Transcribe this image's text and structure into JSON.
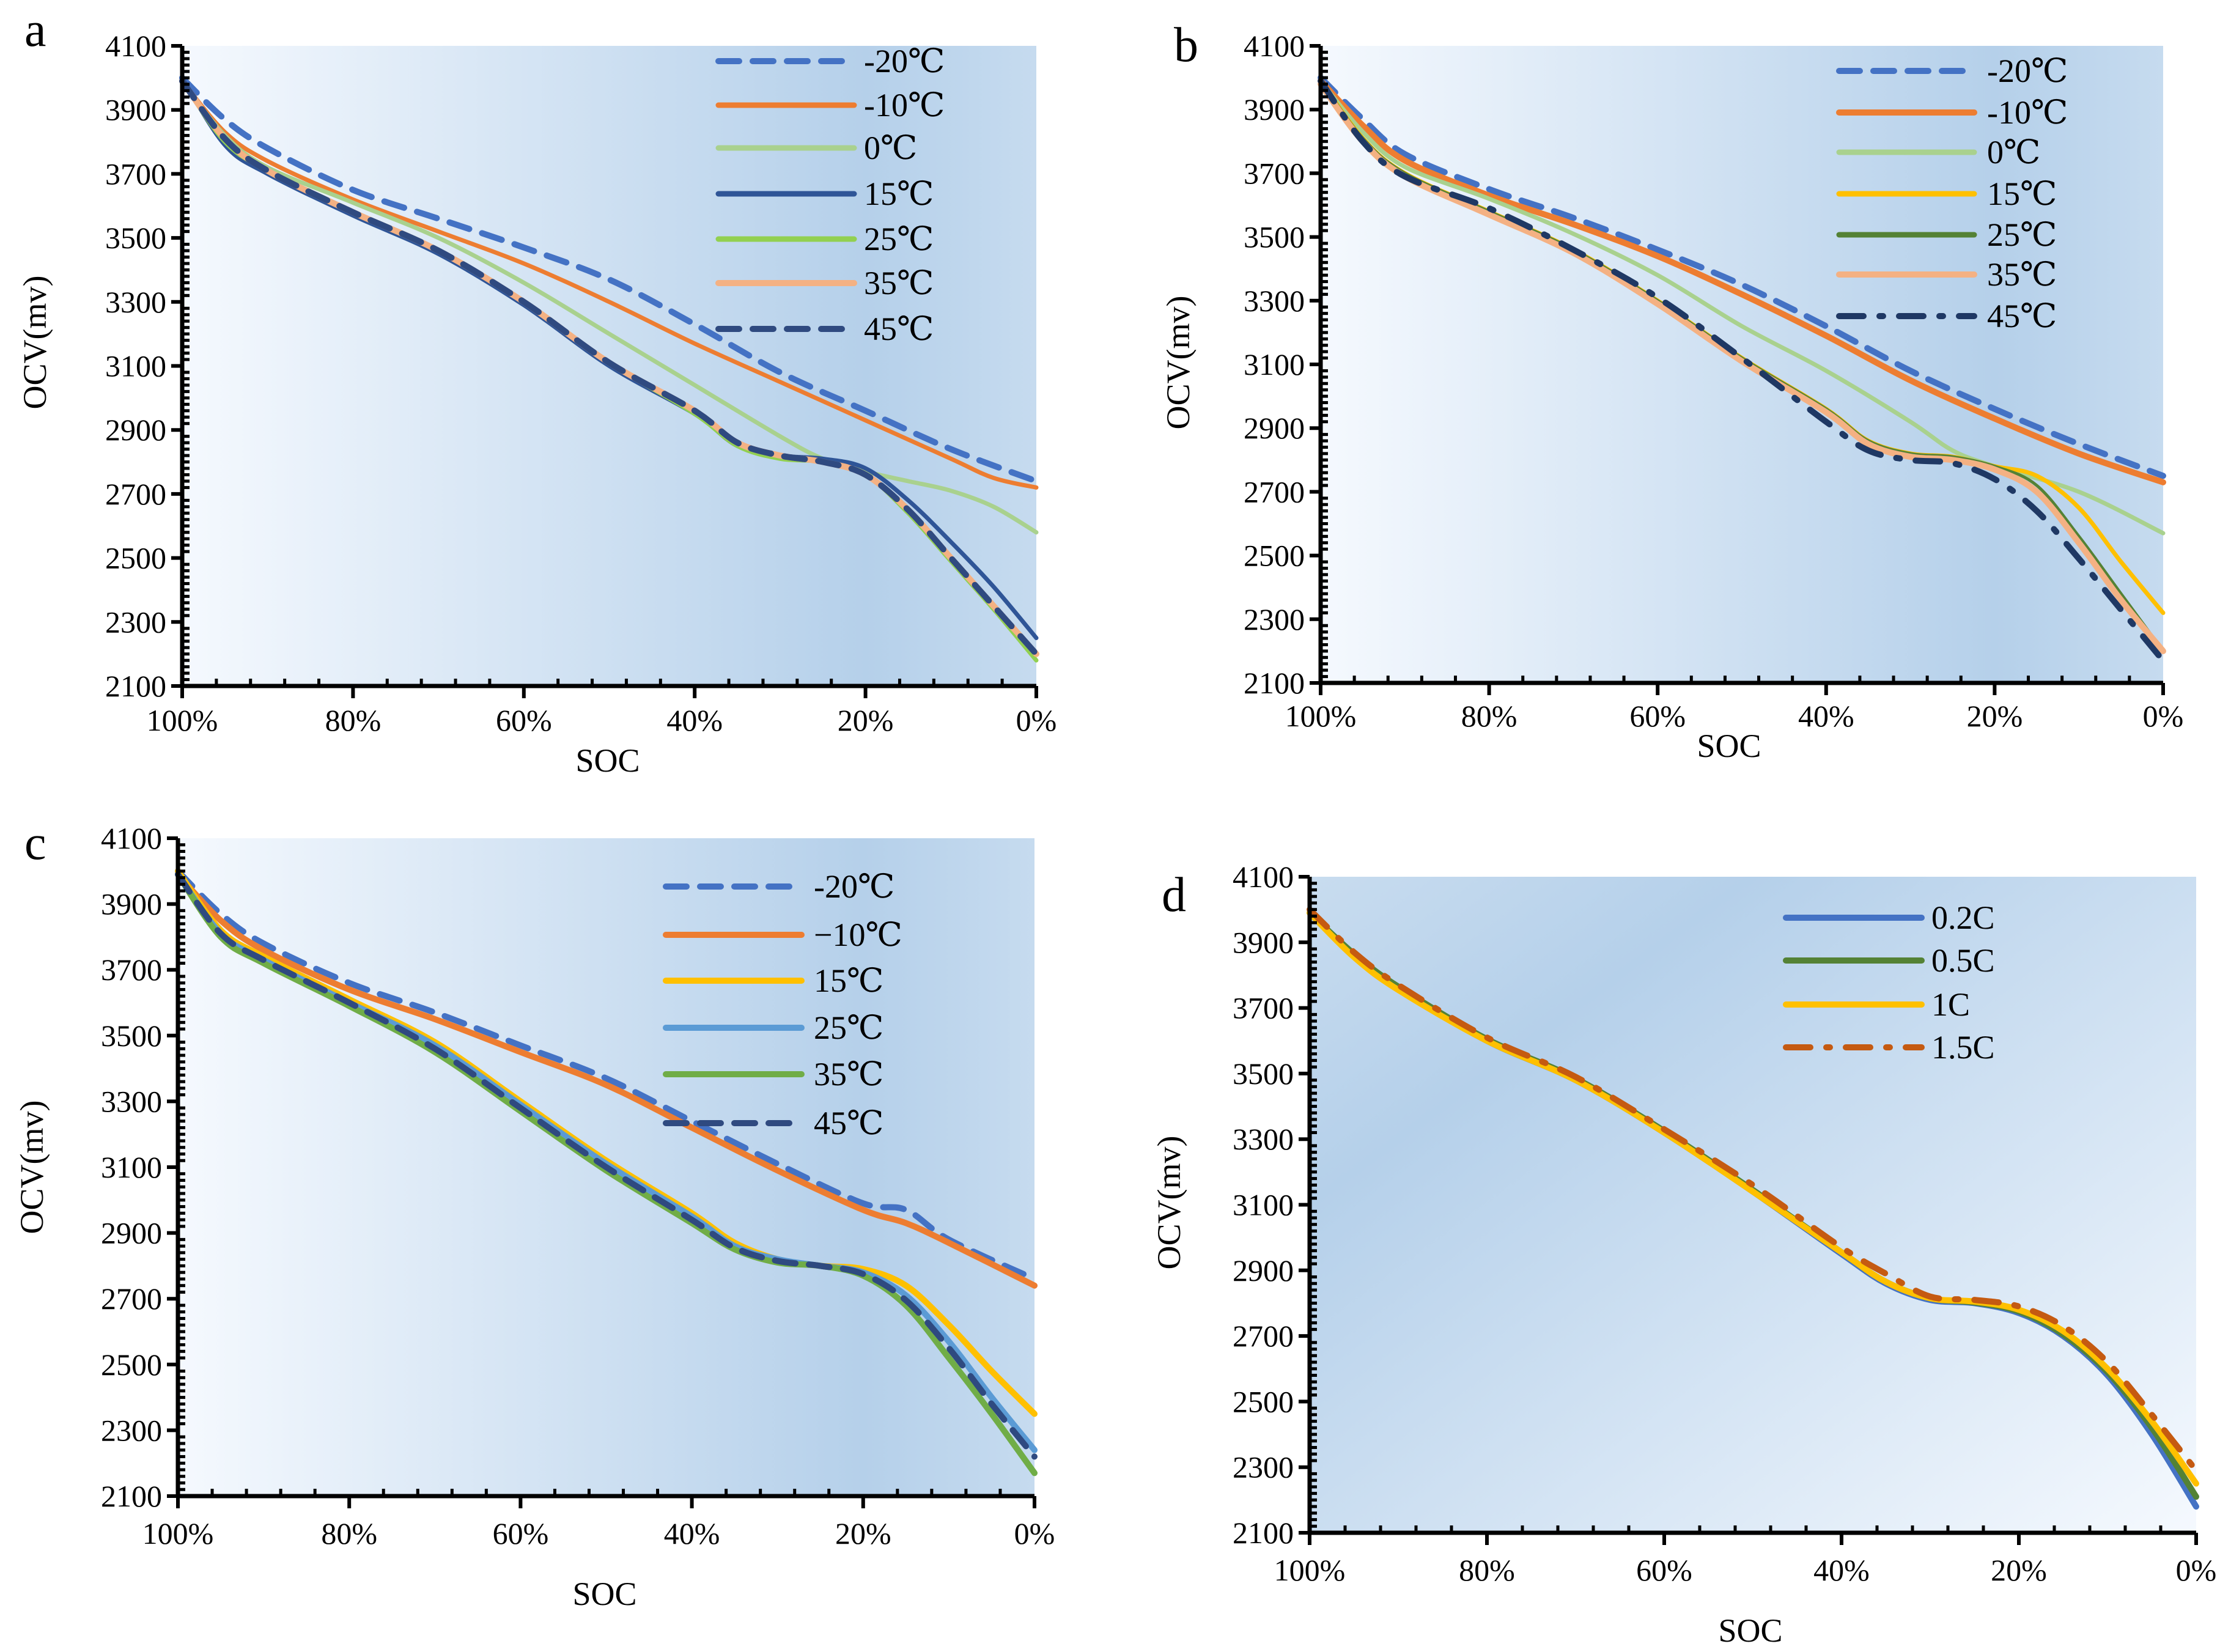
{
  "chart_data": [
    {
      "panel": "a",
      "type": "line",
      "xlabel": "SOC",
      "ylabel": "OCV(mv)",
      "ylim": [
        2100,
        4100
      ],
      "yticks": [
        "2100",
        "2300",
        "2500",
        "2700",
        "2900",
        "3100",
        "3300",
        "3500",
        "3700",
        "3900",
        "4100"
      ],
      "xticks": [
        "100%",
        "80%",
        "60%",
        "40%",
        "20%",
        "0%"
      ],
      "legend": "top-right",
      "series": [
        {
          "name": "-20℃",
          "color": "#4472C4",
          "style": "dash",
          "x": [
            100,
            95,
            90,
            80,
            70,
            60,
            50,
            40,
            30,
            20,
            10,
            0
          ],
          "y": [
            4000,
            3870,
            3780,
            3650,
            3560,
            3470,
            3370,
            3230,
            3080,
            2960,
            2840,
            2740
          ]
        },
        {
          "name": "-10℃",
          "color": "#ED7D31",
          "style": "solid",
          "x": [
            100,
            95,
            90,
            80,
            70,
            60,
            50,
            40,
            30,
            20,
            10,
            5,
            0
          ],
          "y": [
            3990,
            3830,
            3740,
            3620,
            3520,
            3420,
            3300,
            3170,
            3050,
            2930,
            2810,
            2750,
            2720
          ]
        },
        {
          "name": "0℃",
          "color": "#A9D18E",
          "style": "solid",
          "x": [
            100,
            95,
            90,
            80,
            70,
            60,
            50,
            40,
            30,
            25,
            20,
            15,
            10,
            5,
            0
          ],
          "y": [
            3990,
            3820,
            3720,
            3610,
            3500,
            3360,
            3200,
            3040,
            2880,
            2810,
            2770,
            2740,
            2710,
            2660,
            2580
          ]
        },
        {
          "name": "15℃",
          "color": "#2F5597",
          "style": "solid",
          "x": [
            100,
            95,
            90,
            80,
            70,
            60,
            50,
            40,
            35,
            30,
            25,
            20,
            15,
            10,
            5,
            0
          ],
          "y": [
            4000,
            3790,
            3700,
            3570,
            3450,
            3290,
            3100,
            2950,
            2850,
            2820,
            2810,
            2780,
            2680,
            2550,
            2410,
            2250
          ]
        },
        {
          "name": "25℃",
          "color": "#92D050",
          "style": "solid",
          "x": [
            100,
            95,
            90,
            80,
            70,
            60,
            50,
            40,
            35,
            30,
            25,
            20,
            15,
            10,
            5,
            0
          ],
          "y": [
            3990,
            3800,
            3710,
            3580,
            3460,
            3300,
            3110,
            2950,
            2850,
            2810,
            2800,
            2760,
            2640,
            2490,
            2340,
            2180
          ]
        },
        {
          "name": "35℃",
          "color": "#F4B183",
          "style": "thick",
          "x": [
            100,
            95,
            90,
            80,
            70,
            60,
            50,
            40,
            35,
            30,
            25,
            20,
            15,
            10,
            5,
            0
          ],
          "y": [
            3990,
            3810,
            3710,
            3580,
            3460,
            3300,
            3110,
            2960,
            2860,
            2820,
            2800,
            2760,
            2650,
            2500,
            2350,
            2200
          ]
        },
        {
          "name": "45℃",
          "color": "#2F4A80",
          "style": "dash",
          "x": [
            100,
            95,
            90,
            80,
            70,
            60,
            50,
            40,
            35,
            30,
            25,
            20,
            15,
            10,
            5,
            0
          ],
          "y": [
            3990,
            3810,
            3710,
            3580,
            3460,
            3300,
            3110,
            2960,
            2860,
            2820,
            2800,
            2760,
            2650,
            2500,
            2350,
            2200
          ]
        }
      ]
    },
    {
      "panel": "b",
      "type": "line",
      "xlabel": "SOC",
      "ylabel": "OCV(mv)",
      "ylim": [
        2100,
        4100
      ],
      "yticks": [
        "2100",
        "2300",
        "2500",
        "2700",
        "2900",
        "3100",
        "3300",
        "3500",
        "3700",
        "3900",
        "4100"
      ],
      "xticks": [
        "100%",
        "80%",
        "60%",
        "40%",
        "20%",
        "0%"
      ],
      "legend": "top-right",
      "series": [
        {
          "name": "-20℃",
          "color": "#4472C4",
          "style": "dash",
          "x": [
            100,
            95,
            90,
            80,
            70,
            60,
            50,
            40,
            30,
            20,
            10,
            0
          ],
          "y": [
            4000,
            3870,
            3760,
            3650,
            3560,
            3460,
            3350,
            3220,
            3080,
            2960,
            2850,
            2750
          ]
        },
        {
          "name": "-10℃",
          "color": "#ED7D31",
          "style": "thick",
          "x": [
            100,
            95,
            90,
            80,
            70,
            60,
            50,
            40,
            30,
            20,
            10,
            0
          ],
          "y": [
            3990,
            3850,
            3740,
            3630,
            3540,
            3440,
            3320,
            3190,
            3050,
            2930,
            2820,
            2730
          ]
        },
        {
          "name": "0℃",
          "color": "#A9D18E",
          "style": "solid",
          "x": [
            100,
            95,
            90,
            80,
            70,
            60,
            50,
            40,
            30,
            25,
            20,
            10,
            0
          ],
          "y": [
            3990,
            3830,
            3720,
            3620,
            3510,
            3380,
            3220,
            3080,
            2920,
            2830,
            2780,
            2700,
            2570
          ]
        },
        {
          "name": "15℃",
          "color": "#FFC000",
          "style": "solid",
          "x": [
            100,
            95,
            90,
            80,
            70,
            60,
            50,
            40,
            35,
            30,
            25,
            20,
            15,
            10,
            5,
            0
          ],
          "y": [
            3990,
            3810,
            3700,
            3580,
            3460,
            3300,
            3120,
            2960,
            2860,
            2820,
            2810,
            2780,
            2750,
            2650,
            2480,
            2320
          ]
        },
        {
          "name": "25℃",
          "color": "#548235",
          "style": "thin",
          "x": [
            100,
            95,
            90,
            80,
            70,
            60,
            50,
            40,
            35,
            30,
            25,
            20,
            15,
            10,
            5,
            0
          ],
          "y": [
            3990,
            3810,
            3700,
            3580,
            3460,
            3300,
            3120,
            2960,
            2860,
            2820,
            2810,
            2780,
            2720,
            2560,
            2380,
            2200
          ]
        },
        {
          "name": "35℃",
          "color": "#F4B183",
          "style": "thick",
          "x": [
            100,
            95,
            90,
            80,
            70,
            60,
            50,
            40,
            35,
            30,
            25,
            20,
            15,
            10,
            5,
            0
          ],
          "y": [
            3980,
            3800,
            3690,
            3570,
            3450,
            3290,
            3110,
            2950,
            2850,
            2810,
            2800,
            2770,
            2700,
            2540,
            2360,
            2200
          ]
        },
        {
          "name": "45℃",
          "color": "#1F3864",
          "style": "dashdot",
          "x": [
            100,
            95,
            90,
            80,
            70,
            60,
            50,
            40,
            35,
            30,
            25,
            20,
            15,
            10,
            5,
            0
          ],
          "y": [
            3990,
            3800,
            3690,
            3590,
            3460,
            3310,
            3120,
            2920,
            2830,
            2800,
            2790,
            2740,
            2640,
            2490,
            2330,
            2170
          ]
        }
      ]
    },
    {
      "panel": "c",
      "type": "line",
      "xlabel": "SOC",
      "ylabel": "OCV(mv)",
      "ylim": [
        2100,
        4100
      ],
      "yticks": [
        "2100",
        "2300",
        "2500",
        "2700",
        "2900",
        "3100",
        "3300",
        "3500",
        "3700",
        "3900",
        "4100"
      ],
      "xticks": [
        "100%",
        "80%",
        "60%",
        "40%",
        "20%",
        "0%"
      ],
      "legend": "top-right",
      "series": [
        {
          "name": "-20℃",
          "color": "#4472C4",
          "style": "dash",
          "x": [
            100,
            95,
            90,
            80,
            70,
            60,
            50,
            40,
            30,
            20,
            15,
            10,
            0
          ],
          "y": [
            4000,
            3870,
            3780,
            3660,
            3570,
            3470,
            3370,
            3240,
            3110,
            2990,
            2970,
            2880,
            2760
          ]
        },
        {
          "name": "−10℃",
          "color": "#ED7D31",
          "style": "thick",
          "x": [
            100,
            95,
            90,
            80,
            70,
            60,
            50,
            40,
            30,
            20,
            15,
            10,
            0
          ],
          "y": [
            3990,
            3850,
            3760,
            3640,
            3550,
            3450,
            3350,
            3220,
            3090,
            2970,
            2930,
            2870,
            2740
          ]
        },
        {
          "name": "15℃",
          "color": "#FFC000",
          "style": "thick",
          "x": [
            100,
            95,
            90,
            80,
            70,
            60,
            50,
            40,
            35,
            30,
            25,
            20,
            15,
            10,
            5,
            0
          ],
          "y": [
            4000,
            3820,
            3740,
            3610,
            3480,
            3300,
            3120,
            2960,
            2870,
            2820,
            2800,
            2790,
            2740,
            2620,
            2480,
            2350
          ]
        },
        {
          "name": "25℃",
          "color": "#5B9BD5",
          "style": "thick",
          "x": [
            100,
            95,
            90,
            80,
            70,
            60,
            50,
            40,
            35,
            30,
            25,
            20,
            15,
            10,
            5,
            0
          ],
          "y": [
            3990,
            3810,
            3730,
            3600,
            3470,
            3290,
            3110,
            2950,
            2860,
            2820,
            2800,
            2780,
            2710,
            2570,
            2400,
            2240
          ]
        },
        {
          "name": "35℃",
          "color": "#70AD47",
          "style": "thick",
          "x": [
            100,
            95,
            90,
            80,
            70,
            60,
            50,
            40,
            35,
            30,
            25,
            20,
            15,
            10,
            5,
            0
          ],
          "y": [
            3990,
            3800,
            3720,
            3590,
            3450,
            3270,
            3090,
            2930,
            2850,
            2810,
            2800,
            2770,
            2680,
            2520,
            2350,
            2170
          ]
        },
        {
          "name": "45℃",
          "color": "#2F4A80",
          "style": "dash",
          "x": [
            100,
            95,
            90,
            80,
            70,
            60,
            50,
            40,
            35,
            30,
            25,
            20,
            15,
            10,
            5,
            0
          ],
          "y": [
            3990,
            3810,
            3730,
            3600,
            3460,
            3280,
            3100,
            2940,
            2855,
            2815,
            2800,
            2775,
            2695,
            2550,
            2380,
            2220
          ]
        }
      ]
    },
    {
      "panel": "d",
      "type": "line",
      "xlabel": "SOC",
      "ylabel": "OCV(mv)",
      "ylim": [
        2100,
        4100
      ],
      "yticks": [
        "2100",
        "2300",
        "2500",
        "2700",
        "2900",
        "3100",
        "3300",
        "3500",
        "3700",
        "3900",
        "4100"
      ],
      "xticks": [
        "100%",
        "80%",
        "60%",
        "40%",
        "20%",
        "0%"
      ],
      "legend": "top-right",
      "series": [
        {
          "name": "0.2C",
          "color": "#4472C4",
          "style": "thick",
          "x": [
            100,
            95,
            90,
            80,
            70,
            60,
            50,
            40,
            35,
            30,
            25,
            20,
            15,
            10,
            5,
            0
          ],
          "y": [
            3990,
            3860,
            3760,
            3600,
            3480,
            3320,
            3140,
            2950,
            2860,
            2810,
            2800,
            2770,
            2700,
            2580,
            2400,
            2180
          ]
        },
        {
          "name": "0.5C",
          "color": "#548235",
          "style": "thick",
          "x": [
            100,
            95,
            90,
            80,
            70,
            60,
            50,
            40,
            35,
            30,
            25,
            20,
            15,
            10,
            5,
            0
          ],
          "y": [
            3990,
            3865,
            3765,
            3605,
            3485,
            3325,
            3145,
            2955,
            2865,
            2815,
            2802,
            2775,
            2705,
            2590,
            2420,
            2210
          ]
        },
        {
          "name": "1C",
          "color": "#FFC000",
          "style": "thick",
          "x": [
            100,
            95,
            90,
            80,
            70,
            60,
            50,
            40,
            35,
            30,
            25,
            20,
            15,
            10,
            5,
            0
          ],
          "y": [
            3990,
            3855,
            3755,
            3600,
            3480,
            3320,
            3140,
            2955,
            2865,
            2815,
            2805,
            2780,
            2715,
            2600,
            2440,
            2250
          ]
        },
        {
          "name": "1.5C",
          "color": "#C55A11",
          "style": "dashdot",
          "x": [
            100,
            95,
            90,
            80,
            70,
            60,
            50,
            40,
            35,
            30,
            25,
            20,
            15,
            10,
            5,
            0
          ],
          "y": [
            4000,
            3870,
            3770,
            3610,
            3490,
            3330,
            3160,
            2970,
            2890,
            2820,
            2810,
            2790,
            2730,
            2620,
            2460,
            2290
          ]
        }
      ]
    }
  ]
}
